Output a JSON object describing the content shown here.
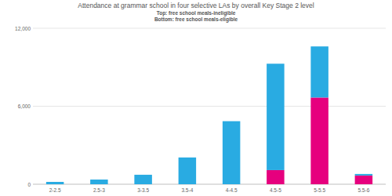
{
  "chart_data": {
    "type": "bar",
    "title": "Attendance at grammar school in four selective LAs by overall Key Stage 2 level",
    "subtitle": [
      "Top: free school meals-ineligible",
      "Bottom: free school meals-eligible"
    ],
    "categories": [
      "2-2.5",
      "2.5-3",
      "3-3.5",
      "3.5-4",
      "4-4.5",
      "4.5-5",
      "5-5.5",
      "5.5-6"
    ],
    "series": [
      {
        "color": "#e6007e",
        "values": [
          0,
          0,
          0,
          0,
          0,
          1090,
          6670,
          670
        ]
      },
      {
        "color": "#29abe2",
        "values": [
          180,
          360,
          730,
          2060,
          4850,
          8180,
          3930,
          120
        ]
      }
    ],
    "stacked": true,
    "ylim": [
      0,
      12000
    ],
    "yticks": [
      0,
      {
        "value": 6000,
        "label": "6,000"
      },
      {
        "value": 12000,
        "label": "12,000"
      }
    ],
    "grid": true
  }
}
